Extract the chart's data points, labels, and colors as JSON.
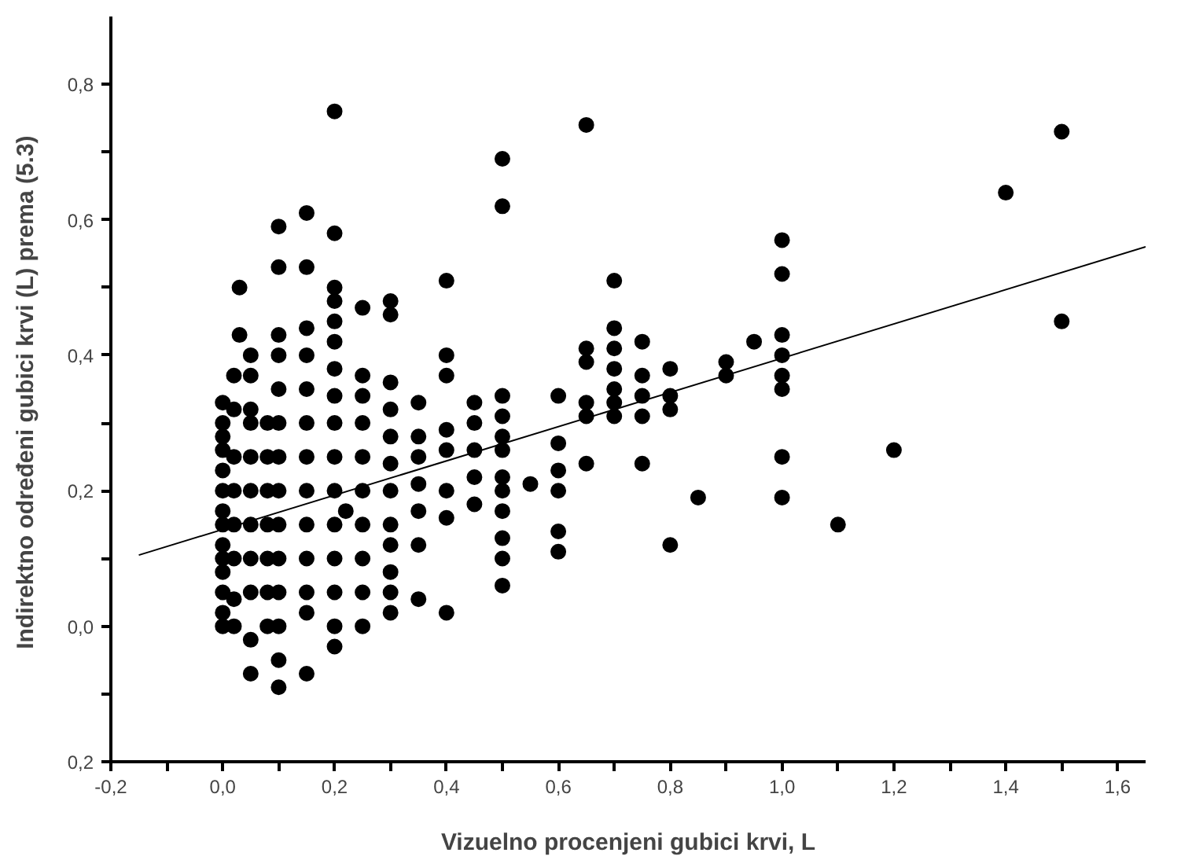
{
  "chart_data": {
    "type": "scatter",
    "xlabel": "Vizuelno procenjeni gubici krvi, L",
    "ylabel": "Indirektno određeni gubici krvi (L) prema  (5.3)",
    "xlim": [
      -0.2,
      1.65
    ],
    "ylim": [
      -0.2,
      0.9
    ],
    "xticks": [
      {
        "value": -0.2,
        "label": "-0,2"
      },
      {
        "value": -0.1,
        "label": null
      },
      {
        "value": 0,
        "label": "0,0"
      },
      {
        "value": 0.1,
        "label": null
      },
      {
        "value": 0.2,
        "label": "0,2"
      },
      {
        "value": 0.3,
        "label": null
      },
      {
        "value": 0.4,
        "label": "0,4"
      },
      {
        "value": 0.5,
        "label": null
      },
      {
        "value": 0.6,
        "label": "0,6"
      },
      {
        "value": 0.7,
        "label": null
      },
      {
        "value": 0.8,
        "label": "0,8"
      },
      {
        "value": 0.9,
        "label": null
      },
      {
        "value": 1.0,
        "label": "1,0"
      },
      {
        "value": 1.1,
        "label": null
      },
      {
        "value": 1.2,
        "label": "1,2"
      },
      {
        "value": 1.3,
        "label": null
      },
      {
        "value": 1.4,
        "label": "1,4"
      },
      {
        "value": 1.5,
        "label": null
      },
      {
        "value": 1.6,
        "label": "1,6"
      }
    ],
    "yticks": [
      {
        "value": -0.2,
        "label": "0,2"
      },
      {
        "value": -0.1,
        "label": null
      },
      {
        "value": 0,
        "label": "0,0"
      },
      {
        "value": 0.1,
        "label": null
      },
      {
        "value": 0.2,
        "label": "0,2"
      },
      {
        "value": 0.3,
        "label": null
      },
      {
        "value": 0.4,
        "label": "0,4"
      },
      {
        "value": 0.5,
        "label": null
      },
      {
        "value": 0.6,
        "label": "0,6"
      },
      {
        "value": 0.7,
        "label": null
      },
      {
        "value": 0.8,
        "label": "0,8"
      }
    ],
    "series": [
      {
        "marker": "circle",
        "color": "#000000",
        "x": [
          0,
          0,
          0,
          0,
          0,
          0,
          0,
          0,
          0,
          0,
          0,
          0,
          0,
          0,
          0.02,
          0.02,
          0.02,
          0.02,
          0.02,
          0.02,
          0.02,
          0.02,
          0.03,
          0.03,
          0.05,
          0.05,
          0.05,
          0.05,
          0.05,
          0.05,
          0.05,
          0.05,
          0.05,
          0.05,
          0.05,
          0.08,
          0.08,
          0.08,
          0.08,
          0.08,
          0.08,
          0.08,
          0.1,
          0.1,
          0.1,
          0.1,
          0.1,
          0.1,
          0.1,
          0.1,
          0.1,
          0.1,
          0.1,
          0.1,
          0.1,
          0.1,
          0.15,
          0.15,
          0.15,
          0.15,
          0.15,
          0.15,
          0.15,
          0.15,
          0.15,
          0.15,
          0.15,
          0.15,
          0.15,
          0.2,
          0.2,
          0.2,
          0.2,
          0.2,
          0.2,
          0.2,
          0.2,
          0.2,
          0.2,
          0.2,
          0.2,
          0.2,
          0.2,
          0.2,
          0.2,
          0.22,
          0.25,
          0.25,
          0.25,
          0.25,
          0.25,
          0.25,
          0.25,
          0.25,
          0.25,
          0.25,
          0.3,
          0.3,
          0.3,
          0.3,
          0.3,
          0.3,
          0.3,
          0.3,
          0.3,
          0.3,
          0.3,
          0.3,
          0.35,
          0.35,
          0.35,
          0.35,
          0.35,
          0.35,
          0.35,
          0.4,
          0.4,
          0.4,
          0.4,
          0.4,
          0.4,
          0.4,
          0.4,
          0.45,
          0.45,
          0.45,
          0.45,
          0.45,
          0.5,
          0.5,
          0.5,
          0.5,
          0.5,
          0.5,
          0.5,
          0.5,
          0.5,
          0.5,
          0.5,
          0.5,
          0.55,
          0.6,
          0.6,
          0.6,
          0.6,
          0.6,
          0.6,
          0.65,
          0.65,
          0.65,
          0.65,
          0.65,
          0.65,
          0.7,
          0.7,
          0.7,
          0.7,
          0.7,
          0.7,
          0.7,
          0.75,
          0.75,
          0.75,
          0.75,
          0.75,
          0.8,
          0.8,
          0.8,
          0.8,
          0.85,
          0.9,
          0.9,
          0.95,
          1.0,
          1.0,
          1.0,
          1.0,
          1.0,
          1.0,
          1.0,
          1.0,
          1.1,
          1.2,
          1.4,
          1.5,
          1.5
        ],
        "values": [
          0.0,
          0.02,
          0.05,
          0.08,
          0.1,
          0.12,
          0.15,
          0.17,
          0.2,
          0.23,
          0.26,
          0.3,
          0.33,
          0.28,
          0.0,
          0.04,
          0.1,
          0.15,
          0.2,
          0.25,
          0.32,
          0.37,
          0.5,
          0.43,
          -0.02,
          -0.07,
          0.05,
          0.1,
          0.15,
          0.2,
          0.25,
          0.3,
          0.37,
          0.4,
          0.32,
          0.3,
          0.25,
          0.2,
          0.15,
          0.1,
          0.05,
          0.0,
          -0.09,
          -0.05,
          0.0,
          0.05,
          0.1,
          0.15,
          0.2,
          0.25,
          0.3,
          0.35,
          0.4,
          0.43,
          0.53,
          0.59,
          -0.07,
          0.02,
          0.05,
          0.1,
          0.15,
          0.2,
          0.25,
          0.3,
          0.35,
          0.4,
          0.44,
          0.53,
          0.61,
          0.76,
          0.58,
          0.5,
          0.48,
          0.45,
          0.42,
          0.38,
          0.34,
          0.3,
          0.25,
          0.2,
          0.15,
          0.1,
          0.05,
          0.0,
          -0.03,
          0.17,
          0.47,
          0.37,
          0.34,
          0.3,
          0.25,
          0.2,
          0.15,
          0.1,
          0.05,
          0.0,
          0.48,
          0.46,
          0.36,
          0.32,
          0.28,
          0.24,
          0.2,
          0.15,
          0.12,
          0.08,
          0.05,
          0.02,
          0.33,
          0.28,
          0.25,
          0.21,
          0.17,
          0.12,
          0.04,
          0.51,
          0.4,
          0.37,
          0.29,
          0.26,
          0.2,
          0.16,
          0.02,
          0.33,
          0.3,
          0.26,
          0.22,
          0.18,
          0.69,
          0.62,
          0.34,
          0.31,
          0.28,
          0.26,
          0.22,
          0.2,
          0.17,
          0.13,
          0.1,
          0.06,
          0.21,
          0.34,
          0.27,
          0.23,
          0.2,
          0.14,
          0.11,
          0.74,
          0.41,
          0.39,
          0.33,
          0.31,
          0.24,
          0.51,
          0.44,
          0.41,
          0.38,
          0.35,
          0.33,
          0.31,
          0.42,
          0.37,
          0.34,
          0.31,
          0.24,
          0.38,
          0.34,
          0.32,
          0.12,
          0.19,
          0.39,
          0.37,
          0.42,
          0.57,
          0.52,
          0.43,
          0.4,
          0.37,
          0.35,
          0.25,
          0.19,
          0.15,
          0.26,
          0.64,
          0.73,
          0.45
        ]
      },
      {
        "type": "line",
        "color": "#000000",
        "line_style": "solid",
        "x": [
          -0.15,
          1.65
        ],
        "values": [
          0.105,
          0.56
        ]
      }
    ]
  }
}
